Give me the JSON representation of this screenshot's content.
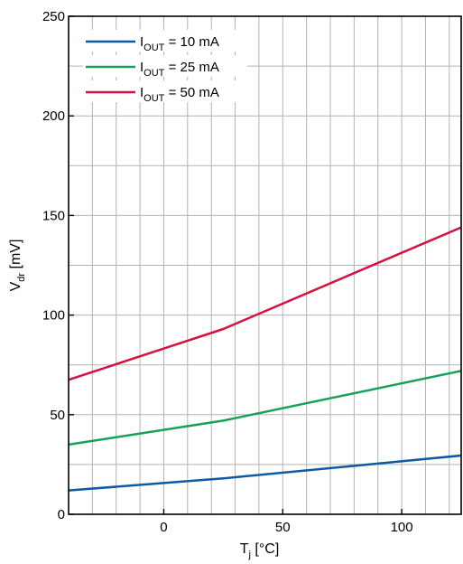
{
  "chart_data": {
    "type": "line",
    "title": "",
    "xlabel": {
      "main": "T",
      "sub": "j",
      "unit": " [°C]"
    },
    "ylabel": {
      "main": "V",
      "sub": "dr",
      "unit": " [mV]"
    },
    "xlim": [
      -40,
      125
    ],
    "ylim": [
      0,
      250
    ],
    "x_ticks": [
      0,
      50,
      100
    ],
    "y_ticks": [
      0,
      50,
      100,
      150,
      200,
      250
    ],
    "x_grid_step": 10,
    "y_grid_step": 25,
    "grid": true,
    "legend_position": "top-left",
    "series": [
      {
        "name": {
          "main": "I",
          "sub": "OUT",
          "rest": " = 10 mA"
        },
        "color": "#0b5aa2",
        "x": [
          -40,
          25,
          125
        ],
        "y": [
          12,
          18,
          29.5
        ]
      },
      {
        "name": {
          "main": "I",
          "sub": "OUT",
          "rest": " = 25 mA"
        },
        "color": "#16a05a",
        "x": [
          -40,
          25,
          125
        ],
        "y": [
          35,
          47,
          72
        ]
      },
      {
        "name": {
          "main": "I",
          "sub": "OUT",
          "rest": " = 50 mA"
        },
        "color": "#d4123f",
        "x": [
          -40,
          25,
          125
        ],
        "y": [
          67.5,
          93,
          144
        ]
      }
    ]
  }
}
